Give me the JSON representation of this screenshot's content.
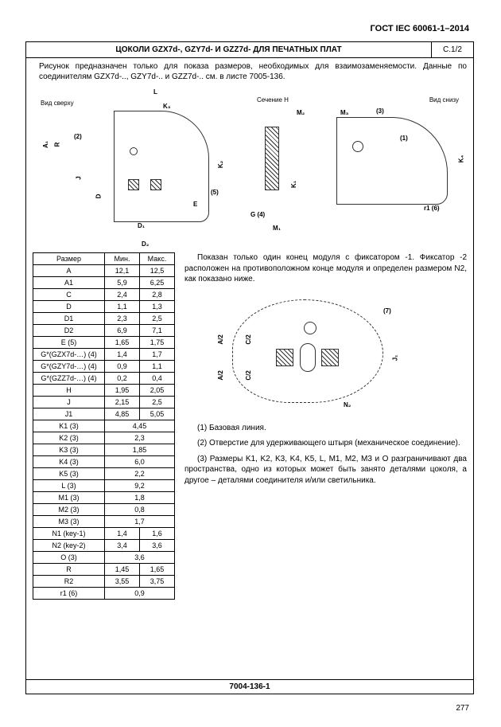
{
  "standard_header": "ГОСТ IEC 60061-1–2014",
  "title": "ЦОКОЛИ GZX7d-, GZY7d- И GZZ7d- ДЛЯ ПЕЧАТНЫХ ПЛАТ",
  "sheet_code": "C.1/2",
  "intro": "Рисунок предназначен только для показа размеров, необходимых для взаимозаменяемости. Данные по соединителям GZX7d-.., GZY7d-.. и GZZ7d-.. см. в листе 7005-136.",
  "diagram_labels": {
    "top_view": "Вид сверху",
    "section": "Сечение Н",
    "bottom_view": "Вид снизу",
    "dims_top": [
      "L",
      "K3",
      "(2)",
      "A1",
      "R",
      "J",
      "D",
      "D1",
      "D2",
      "E",
      "(5)",
      "K2",
      "M2",
      "M3",
      "(3)",
      "(1)",
      "K4",
      "K1",
      "G (4)",
      "M1",
      "r1 (6)"
    ]
  },
  "table": {
    "headers": [
      "Размер",
      "Мин.",
      "Макс."
    ],
    "rows": [
      {
        "p": "A",
        "min": "12,1",
        "max": "12,5"
      },
      {
        "p": "A1",
        "min": "5,9",
        "max": "6,25"
      },
      {
        "p": "C",
        "min": "2,4",
        "max": "2,8"
      },
      {
        "p": "D",
        "min": "1,1",
        "max": "1,3"
      },
      {
        "p": "D1",
        "min": "2,3",
        "max": "2,5"
      },
      {
        "p": "D2",
        "min": "6,9",
        "max": "7,1"
      },
      {
        "p": "E (5)",
        "min": "1,65",
        "max": "1,75"
      },
      {
        "p": "G*(GZX7d-…) (4)",
        "min": "1,4",
        "max": "1,7"
      },
      {
        "p": "G*(GZY7d-…) (4)",
        "min": "0,9",
        "max": "1,1"
      },
      {
        "p": "G*(GZZ7d-…) (4)",
        "min": "0,2",
        "max": "0,4"
      },
      {
        "p": "H",
        "min": "1,95",
        "max": "2,05"
      },
      {
        "p": "J",
        "min": "2,15",
        "max": "2,5"
      },
      {
        "p": "J1",
        "min": "4,85",
        "max": "5,05"
      },
      {
        "p": "K1 (3)",
        "span": "4,45"
      },
      {
        "p": "K2 (3)",
        "span": "2,3"
      },
      {
        "p": "K3 (3)",
        "span": "1,85"
      },
      {
        "p": "K4 (3)",
        "span": "6,0"
      },
      {
        "p": "K5 (3)",
        "span": "2,2"
      },
      {
        "p": "L (3)",
        "span": "9,2"
      },
      {
        "p": "M1 (3)",
        "span": "1,8"
      },
      {
        "p": "M2 (3)",
        "span": "0,8"
      },
      {
        "p": "M3 (3)",
        "span": "1,7"
      },
      {
        "p": "N1 (key-1)",
        "min": "1,4",
        "max": "1,6"
      },
      {
        "p": "N2 (key-2)",
        "min": "3,4",
        "max": "3,6"
      },
      {
        "p": "O (3)",
        "span": "3,6"
      },
      {
        "p": "R",
        "min": "1,45",
        "max": "1,65"
      },
      {
        "p": "R2",
        "min": "3,55",
        "max": "3,75"
      },
      {
        "p": "r1 (6)",
        "span": "0,9"
      }
    ]
  },
  "right_text": {
    "p1": "Показан только один конец модуля с фиксатором -1. Фиксатор -2 расположен на противоположном конце модуля и определен размером N2, как показано ниже.",
    "diagram2_labels": [
      "(7)",
      "A/2",
      "C/2",
      "J1",
      "N2"
    ],
    "notes": [
      "(1) Базовая линия.",
      "(2) Отверстие для удерживающего штыря (механическое соединение).",
      "(3) Размеры K1, K2, K3, K4, K5, L, M1, M2, M3 и O разграничивают два пространства, одно из которых может быть занято деталями цоколя, а другое – деталями соединителя и/или светильника."
    ]
  },
  "bottom_code": "7004-136-1",
  "page_number": "277",
  "colors": {
    "border": "#000000",
    "text": "#000000",
    "bg": "#ffffff",
    "hatch": "#333333"
  }
}
